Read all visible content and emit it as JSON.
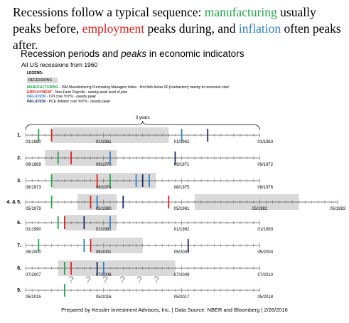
{
  "headline": {
    "part1": "Recessions follow a typical sequence: ",
    "manufacturing": "manufacturing",
    "part2": " usually peaks before, ",
    "employment": "employment",
    "part3": " peaks during, and ",
    "inflation": "inflation",
    "part4": " often peaks after."
  },
  "colors": {
    "manufacturing": "#22a64a",
    "employment": "#e02020",
    "inflation": "#2f7fc4",
    "pce": "#1f2a6b",
    "recession": "#d9d9d9"
  },
  "footer": "Prepared by Kessler Investment Advisors, Inc. | Data Source: NBER and Bloomberg | 2/26/2016",
  "chart_data": {
    "type": "timeline",
    "title": "Recession periods and peaks in economic indicators",
    "title_prefix": "Recession periods and ",
    "title_emph": "peaks",
    "title_suffix": " in economic indicators",
    "subtitle": "All US recessions from 1960",
    "legend": {
      "title": "LEGEND:",
      "recessions": "RECESSIONS",
      "items": [
        {
          "key": "MANUFACTURING",
          "desc": " - ISM Manufacturing Purchasing Managers Index - ",
          "note": "first falls below 50 (contraction) nearby to recession start",
          "color": "manufacturing"
        },
        {
          "key": "EMPLOYMENT",
          "desc": " - Non-Farm Payrolls - ",
          "note": "nearby peak level of jobs",
          "color": "employment"
        },
        {
          "key": "INFLATION",
          "desc": " - CPI core YoY% - ",
          "note": "nearby peak",
          "color": "inflation"
        },
        {
          "key": "INFLATION",
          "desc": " - PCE deflator core YoY% - ",
          "note": "nearby peak",
          "color": "pce"
        }
      ]
    },
    "span_label": "3 years",
    "rows": [
      {
        "label": "1.",
        "start": [
          1960,
          1
        ],
        "months": 36,
        "ticks": [
          "01/1960",
          "01/1961",
          "01/1962",
          "01/1963"
        ],
        "recession": [
          4,
          22
        ],
        "markers": [
          {
            "series": "manufacturing",
            "m": 2
          },
          {
            "series": "employment",
            "m": 4
          },
          {
            "series": "inflation",
            "m": 24
          },
          {
            "series": "pce",
            "m": 28
          }
        ]
      },
      {
        "label": "2.",
        "start": [
          1969,
          9
        ],
        "months": 36,
        "ticks": [
          "09/1969",
          "09/1970",
          "09/1971",
          "09/1972"
        ],
        "recession": [
          3,
          14
        ],
        "markers": [
          {
            "series": "manufacturing",
            "m": 5
          },
          {
            "series": "employment",
            "m": 7
          },
          {
            "series": "inflation",
            "m": 13
          },
          {
            "series": "pce",
            "m": 23
          }
        ]
      },
      {
        "label": "3.",
        "start": [
          1973,
          8
        ],
        "months": 36,
        "ticks": [
          "08/1973",
          "08/1974",
          "08/1975",
          "08/1976"
        ],
        "recession": [
          4,
          20
        ],
        "markers": [
          {
            "series": "manufacturing",
            "m": 4
          },
          {
            "series": "employment",
            "m": 11
          },
          {
            "series": "manufacturing",
            "m": 13
          },
          {
            "series": "inflation",
            "m": 17
          },
          {
            "series": "pce",
            "m": 18
          },
          {
            "series": "inflation",
            "m": 19
          }
        ]
      },
      {
        "label": "4. & 5.",
        "start": [
          1979,
          5
        ],
        "months": 48,
        "ticks": [
          "05/1979",
          "05/1980",
          "05/1981",
          "05/1982",
          "05/1983"
        ],
        "recession": [
          [
            8,
            14
          ],
          [
            26,
            42
          ]
        ],
        "markers": [
          {
            "series": "manufacturing",
            "m": 4
          },
          {
            "series": "employment",
            "m": 10
          },
          {
            "series": "inflation",
            "m": 11
          },
          {
            "series": "pce",
            "m": 15
          },
          {
            "series": "employment",
            "m": 22
          }
        ]
      },
      {
        "label": "6.",
        "start": [
          1990,
          1
        ],
        "months": 36,
        "ticks": [
          "01/1990",
          "01/1991",
          "01/1992",
          "01/1993"
        ],
        "recession": [
          6,
          14
        ],
        "markers": [
          {
            "series": "manufacturing",
            "m": 5
          },
          {
            "series": "employment",
            "m": 6
          },
          {
            "series": "pce",
            "m": 9
          },
          {
            "series": "inflation",
            "m": 13
          }
        ]
      },
      {
        "label": "7.",
        "start": [
          2000,
          5
        ],
        "months": 36,
        "ticks": [
          "05/2000",
          "05/2001",
          "05/2002",
          "05/2003"
        ],
        "recession": [
          10,
          18
        ],
        "markers": [
          {
            "series": "manufacturing",
            "m": 2
          },
          {
            "series": "inflation",
            "m": 9
          },
          {
            "series": "employment",
            "m": 10
          },
          {
            "series": "pce",
            "m": 25
          }
        ]
      },
      {
        "label": "8.",
        "start": [
          2007,
          7
        ],
        "months": 36,
        "ticks": [
          "07/2007",
          "07/2008",
          "07/2009",
          "07/2010"
        ],
        "recession": [
          5,
          23
        ],
        "markers": [
          {
            "series": "manufacturing",
            "m": 6
          },
          {
            "series": "employment",
            "m": 7
          },
          {
            "series": "pce",
            "m": 11
          },
          {
            "series": "inflation",
            "m": 12
          }
        ]
      },
      {
        "label": "9.",
        "start": [
          2015,
          5
        ],
        "months": 36,
        "ticks": [
          "05/2015",
          "05/2016",
          "05/2017",
          "05/2018"
        ],
        "recession": null,
        "markers": [
          {
            "series": "manufacturing",
            "m": 6
          }
        ]
      }
    ],
    "question_marks": [
      "?",
      "?",
      "?",
      "?",
      "?",
      "?"
    ]
  }
}
